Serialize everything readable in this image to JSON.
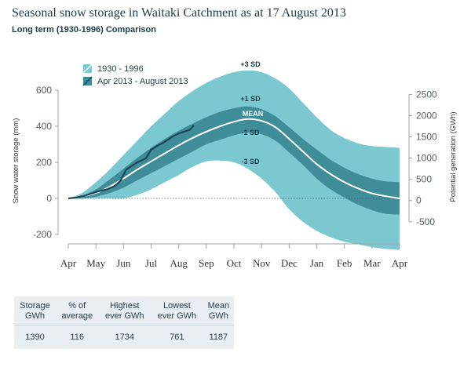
{
  "title": "Seasonal snow storage in Waitaki Catchment as at 17 August 2013",
  "subtitle": "Long term (1930-1996) Comparison",
  "colors": {
    "outer_band": "#7cc8d0",
    "inner_band": "#3f8d98",
    "mean_line": "#ffffff",
    "current_line": "#1f4655",
    "zero_line": "#555555"
  },
  "chart_data": {
    "type": "area",
    "title": "Seasonal snow storage in Waitaki Catchment as at 17 August 2013",
    "subtitle": "Long term (1930-1996) Comparison",
    "xlabel": "",
    "ylabel": "Snow water storage (mm)",
    "y2label": "Potential generation (GWh)",
    "x_ticks": [
      "Apr",
      "May",
      "Jun",
      "Jul",
      "Aug",
      "Sep",
      "Oct",
      "Nov",
      "Dec",
      "Jan",
      "Feb",
      "Mar",
      "Apr"
    ],
    "x_months": [
      0,
      1,
      2,
      3,
      4,
      5,
      6,
      7,
      8,
      9,
      10,
      11,
      12
    ],
    "ylim": [
      -200,
      600
    ],
    "y_ticks": [
      -200,
      0,
      200,
      400,
      600
    ],
    "y_tick_labels": [
      "-200",
      "0",
      "200",
      "400",
      "600"
    ],
    "y2lim": [
      -800,
      2600
    ],
    "y2_ticks": [
      -500,
      0,
      500,
      1000,
      1500,
      2000,
      2500
    ],
    "y2_tick_labels": [
      "-500",
      "0",
      "500",
      "1000",
      "1500",
      "2000",
      "2500"
    ],
    "grid": false,
    "legend_position": "top-left",
    "legend": [
      "1930 - 1996",
      "Apr 2013 - August 2013"
    ],
    "band_labels": {
      "plus3": "+3 SD",
      "plus1": "+1 SD",
      "mean": "MEAN",
      "minus1": "-1 SD",
      "minus3": "-3 SD"
    },
    "series": [
      {
        "key": "plus3",
        "x": [
          0,
          0.5,
          1,
          1.5,
          2,
          2.5,
          3,
          3.5,
          4,
          4.5,
          5,
          5.5,
          6,
          6.5,
          7,
          7.5,
          8,
          8.5,
          9,
          9.5,
          10,
          10.5,
          11,
          11.5,
          12
        ],
        "values": [
          0,
          30,
          90,
          160,
          240,
          320,
          400,
          470,
          540,
          595,
          640,
          675,
          700,
          710,
          700,
          665,
          610,
          530,
          450,
          380,
          335,
          305,
          290,
          285,
          280
        ]
      },
      {
        "key": "plus1",
        "x": [
          0,
          0.5,
          1,
          1.5,
          2,
          2.5,
          3,
          3.5,
          4,
          4.5,
          5,
          5.5,
          6,
          6.5,
          7,
          7.5,
          8,
          8.5,
          9,
          9.5,
          10,
          10.5,
          11,
          11.5,
          12
        ],
        "values": [
          0,
          15,
          50,
          105,
          165,
          225,
          280,
          330,
          375,
          415,
          450,
          480,
          500,
          510,
          495,
          455,
          395,
          330,
          270,
          215,
          170,
          135,
          110,
          95,
          90
        ]
      },
      {
        "key": "mean",
        "name": "MEAN",
        "x": [
          0,
          0.5,
          1,
          1.5,
          2,
          2.5,
          3,
          3.5,
          4,
          4.5,
          5,
          5.5,
          6,
          6.5,
          7,
          7.5,
          8,
          8.5,
          9,
          9.5,
          10,
          10.5,
          11,
          11.5,
          12
        ],
        "values": [
          0,
          10,
          30,
          65,
          110,
          160,
          205,
          250,
          295,
          335,
          370,
          400,
          425,
          440,
          430,
          395,
          330,
          260,
          190,
          135,
          90,
          55,
          28,
          12,
          0
        ]
      },
      {
        "key": "minus1",
        "x": [
          0,
          0.5,
          1,
          1.5,
          2,
          2.5,
          3,
          3.5,
          4,
          4.5,
          5,
          5.5,
          6,
          6.5,
          7,
          7.5,
          8,
          8.5,
          9,
          9.5,
          10,
          10.5,
          11,
          11.5,
          12
        ],
        "values": [
          0,
          0,
          10,
          30,
          60,
          100,
          140,
          180,
          220,
          260,
          300,
          325,
          350,
          365,
          355,
          320,
          255,
          185,
          110,
          50,
          5,
          -35,
          -65,
          -85,
          -90
        ]
      },
      {
        "key": "minus3",
        "x": [
          0,
          0.5,
          1,
          1.5,
          2,
          2.5,
          3,
          3.5,
          4,
          4.5,
          5,
          5.5,
          6,
          6.5,
          7,
          7.5,
          8,
          8.5,
          9,
          9.5,
          10,
          10.5,
          11,
          11.5,
          12
        ],
        "values": [
          0,
          0,
          0,
          0,
          0,
          20,
          50,
          90,
          130,
          175,
          205,
          210,
          200,
          165,
          110,
          35,
          -60,
          -130,
          -180,
          -215,
          -240,
          -255,
          -270,
          -280,
          -285
        ]
      },
      {
        "key": "current",
        "name": "Apr 2013 - August 2013",
        "x": [
          0,
          0.3,
          0.6,
          0.9,
          1.1,
          1.4,
          1.7,
          1.9,
          2.1,
          2.3,
          2.5,
          2.8,
          3.0,
          3.2,
          3.4,
          3.6,
          3.8,
          4.0,
          4.2,
          4.4,
          4.55
        ],
        "values": [
          0,
          5,
          15,
          30,
          40,
          50,
          70,
          100,
          160,
          180,
          200,
          220,
          270,
          290,
          305,
          325,
          345,
          360,
          370,
          380,
          405
        ]
      }
    ]
  },
  "stats_table": {
    "headers": [
      [
        "Storage",
        "GWh"
      ],
      [
        "% of",
        "average"
      ],
      [
        "Highest",
        "ever GWh"
      ],
      [
        "Lowest",
        "ever GWh"
      ],
      [
        "Mean",
        "GWh"
      ]
    ],
    "values": [
      "1390",
      "116",
      "1734",
      "761",
      "1187"
    ]
  }
}
